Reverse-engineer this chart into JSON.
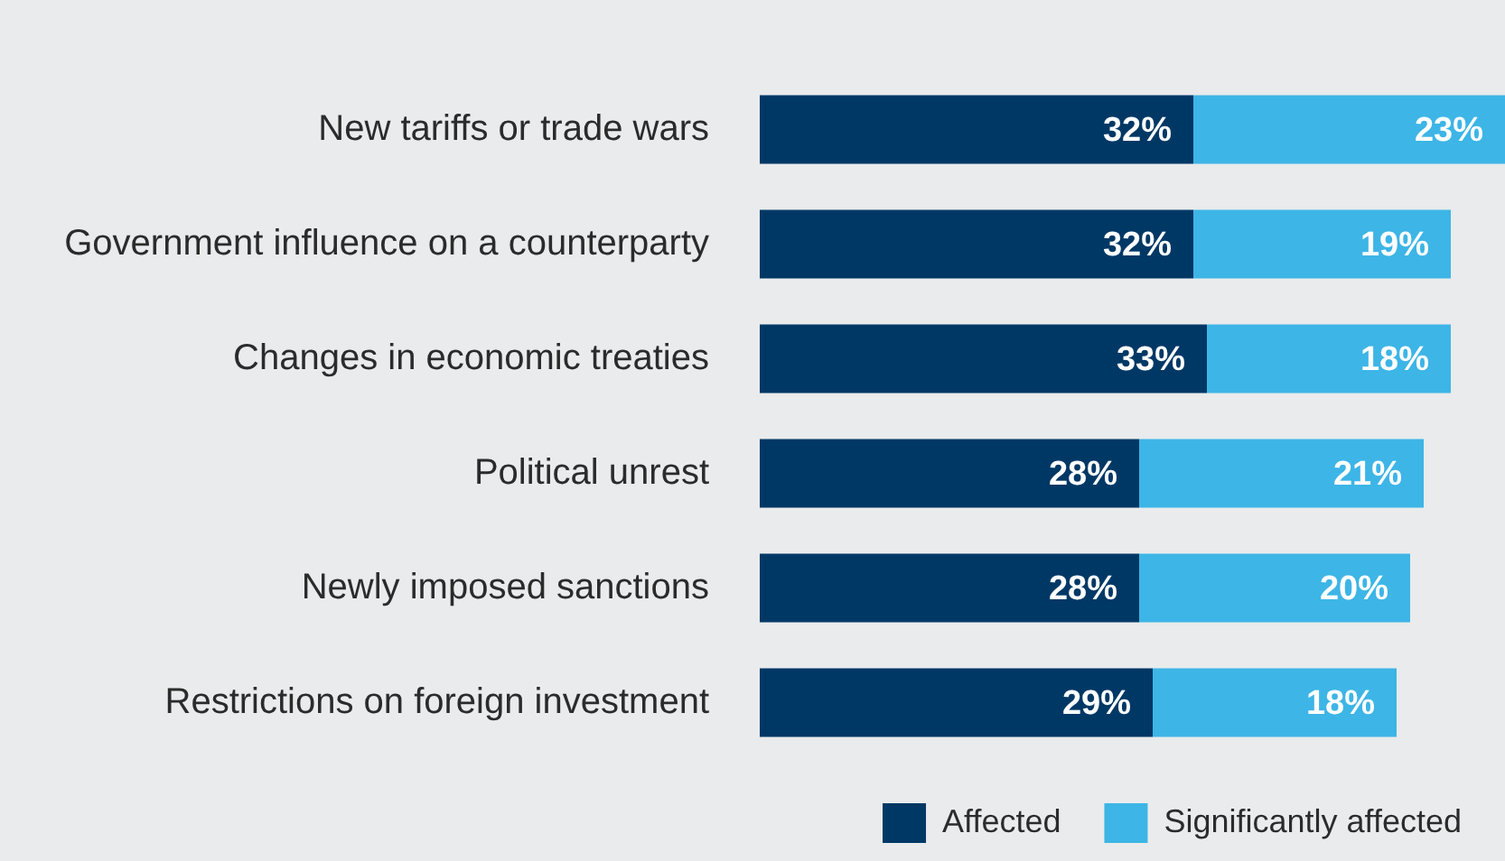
{
  "chart_data": {
    "type": "bar",
    "orientation": "horizontal",
    "stacked": true,
    "categories": [
      "New tariffs or trade wars",
      "Government influence on a counterparty",
      "Changes in economic treaties",
      "Political unrest",
      "Newly imposed sanctions",
      "Restrictions on foreign investment"
    ],
    "series": [
      {
        "name": "Affected",
        "color": "#003865",
        "values": [
          32,
          32,
          33,
          28,
          28,
          29
        ],
        "value_labels": [
          "32%",
          "32%",
          "33%",
          "28%",
          "28%",
          "29%"
        ]
      },
      {
        "name": "Significantly affected",
        "color": "#3db5e6",
        "values": [
          23,
          19,
          18,
          21,
          20,
          18
        ],
        "value_labels": [
          "23%",
          "19%",
          "18%",
          "21%",
          "20%",
          "18%"
        ]
      }
    ],
    "xlim": [
      0,
      55
    ],
    "tick_labels": "y",
    "grid": false,
    "legend": "bottom right"
  }
}
